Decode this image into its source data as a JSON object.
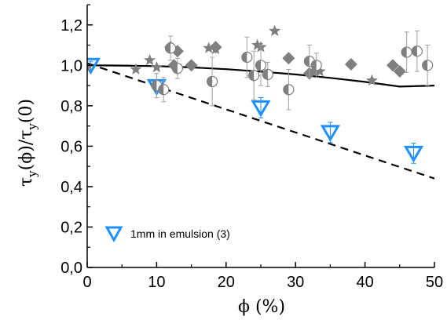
{
  "chart_data": {
    "type": "scatter",
    "xlabel": "ϕ (%)",
    "ylabel_parts": [
      "τ",
      "y",
      "(ϕ)/τ",
      "y",
      "(0)"
    ],
    "xlim": [
      0,
      50
    ],
    "ylim": [
      0,
      1.3
    ],
    "x_ticks": [
      "0",
      "10",
      "20",
      "30",
      "40",
      "50"
    ],
    "y_ticks": [
      "0,0",
      "0,2",
      "0,4",
      "0,6",
      "0,8",
      "1,0",
      "1,2"
    ],
    "colors": {
      "axis": "#000000",
      "gray_markers": "#7f7f7f",
      "error_bars": "#a0a0a0",
      "blue": "#1e90ff"
    },
    "series": [
      {
        "name": "1mm in emulsion (3)",
        "marker": "triangle-down-open",
        "x": [
          0.5,
          10,
          25,
          35,
          47
        ],
        "y": [
          1.0,
          0.895,
          0.79,
          0.668,
          0.565
        ],
        "yerr": [
          0.02,
          0.02,
          0.05,
          0.05,
          0.05
        ]
      },
      {
        "marker": "diamond-filled",
        "x": [
          12,
          12.5,
          13,
          15,
          18.5,
          24,
          29,
          32,
          33,
          38,
          44,
          45
        ],
        "y": [
          1.09,
          1.0,
          1.07,
          1.0,
          1.09,
          0.95,
          1.035,
          0.96,
          0.975,
          1.005,
          1.0,
          0.97
        ]
      },
      {
        "marker": "star",
        "x": [
          0,
          7,
          9,
          10,
          17.5,
          18.5,
          24.5,
          25,
          27,
          33.5,
          41
        ],
        "y": [
          0.99,
          0.98,
          1.025,
          0.99,
          1.085,
          1.08,
          1.1,
          1.09,
          1.17,
          0.97,
          0.925
        ]
      },
      {
        "marker": "circle-half",
        "x": [
          10,
          11,
          12,
          13,
          18,
          23,
          24,
          25,
          26,
          29,
          32,
          33,
          46,
          47.5,
          49
        ],
        "y": [
          0.9,
          0.88,
          1.085,
          0.985,
          0.92,
          1.04,
          0.95,
          1.0,
          0.955,
          0.88,
          1.02,
          1.0,
          1.065,
          1.07,
          1.0
        ],
        "yerr": [
          0.06,
          0.06,
          0.06,
          0.05,
          0.12,
          0.1,
          0.12,
          0.1,
          0.06,
          0.1,
          0.08,
          0.06,
          0.1,
          0.1,
          0.1
        ]
      }
    ],
    "curves": [
      {
        "style": "solid",
        "x": [
          0,
          5,
          10,
          15,
          20,
          25,
          30,
          35,
          40,
          45,
          50
        ],
        "y": [
          1.0,
          0.999,
          0.996,
          0.99,
          0.981,
          0.969,
          0.955,
          0.938,
          0.918,
          0.895,
          0.9
        ]
      },
      {
        "style": "dashed",
        "x": [
          0,
          50
        ],
        "y": [
          1.01,
          0.44
        ]
      }
    ]
  }
}
